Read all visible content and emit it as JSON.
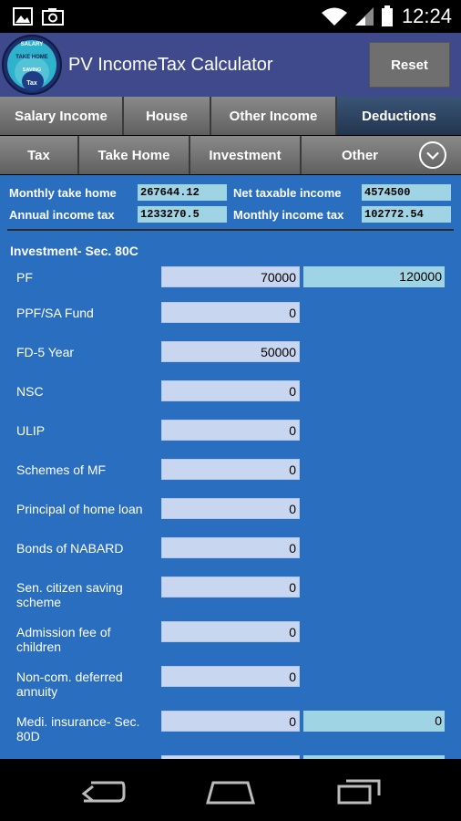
{
  "status": {
    "time": "12:24"
  },
  "app": {
    "title": "PV IncomeTax Calculator",
    "reset_label": "Reset",
    "logo": {
      "line1": "SALARY",
      "line2": "TAKE HOME",
      "line3": "SAVING",
      "line4": "Tax"
    }
  },
  "tabs_primary": [
    {
      "label": "Salary Income",
      "active": false
    },
    {
      "label": "House",
      "active": false
    },
    {
      "label": "Other Income",
      "active": false
    },
    {
      "label": "Deductions",
      "active": true
    }
  ],
  "tabs_secondary": [
    {
      "label": "Tax"
    },
    {
      "label": "Take Home"
    },
    {
      "label": "Investment"
    },
    {
      "label": "Other"
    }
  ],
  "summary": {
    "monthly_take_home_label": "Monthly take home",
    "monthly_take_home_value": "267644.12",
    "net_taxable_income_label": "Net taxable income",
    "net_taxable_income_value": "4574500",
    "annual_income_tax_label": "Annual income tax",
    "annual_income_tax_value": "1233270.5",
    "monthly_income_tax_label": "Monthly income tax",
    "monthly_income_tax_value": "102772.54"
  },
  "section_title": "Investment- Sec. 80C",
  "rows": [
    {
      "label": "PF",
      "value": "70000",
      "total": "120000"
    },
    {
      "label": "PPF/SA Fund",
      "value": "0"
    },
    {
      "label": "FD-5 Year",
      "value": "50000"
    },
    {
      "label": "NSC",
      "value": "0"
    },
    {
      "label": "ULIP",
      "value": "0"
    },
    {
      "label": "Schemes of MF",
      "value": "0"
    },
    {
      "label": "Principal of home loan",
      "value": "0"
    },
    {
      "label": "Bonds of NABARD",
      "value": "0"
    },
    {
      "label": "Sen. citizen saving scheme",
      "value": "0"
    },
    {
      "label": "Admission fee of children",
      "value": "0"
    },
    {
      "label": "Non-com. deferred annuity",
      "value": "0"
    },
    {
      "label": "Medi. insurance- Sec. 80D",
      "value": "0",
      "total": "0"
    }
  ]
}
